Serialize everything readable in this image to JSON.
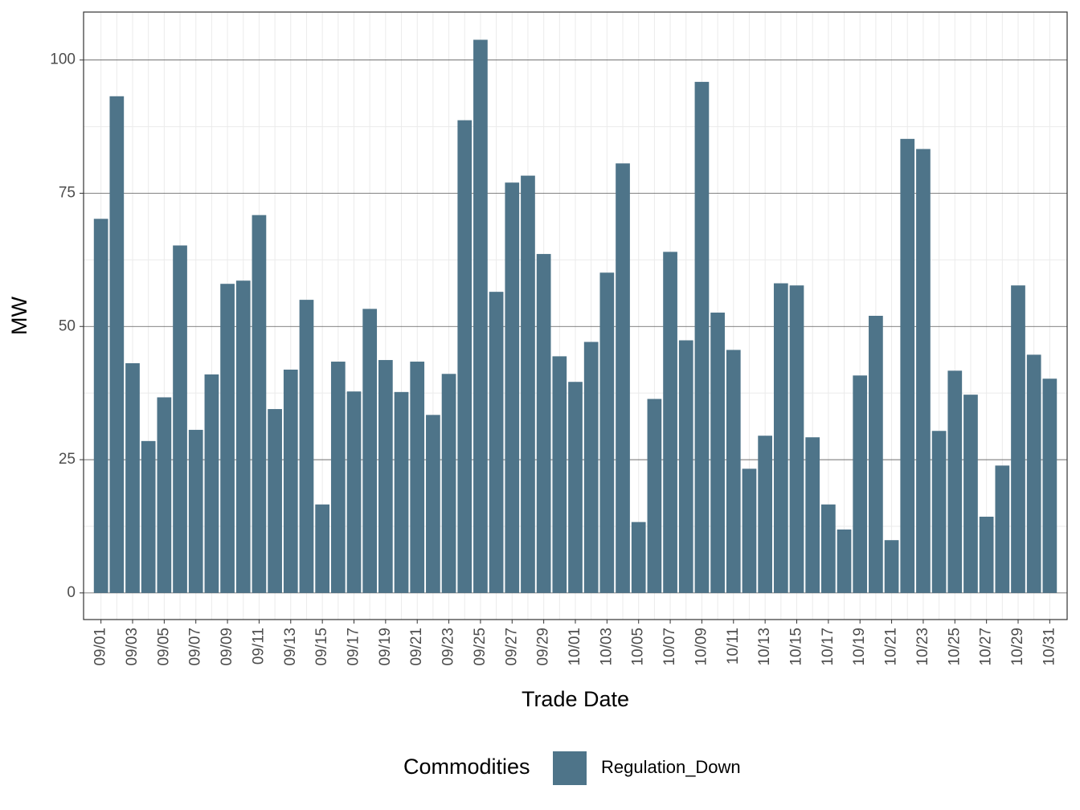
{
  "chart_data": {
    "type": "bar",
    "x_label": "Trade Date",
    "y_label": "MW",
    "categories": [
      "09/01",
      null,
      "09/03",
      null,
      "09/05",
      null,
      "09/07",
      null,
      "09/09",
      null,
      "09/11",
      null,
      "09/13",
      null,
      "09/15",
      null,
      "09/17",
      null,
      "09/19",
      null,
      "09/21",
      null,
      "09/23",
      null,
      "09/25",
      null,
      "09/27",
      null,
      "09/29",
      null,
      "10/01",
      null,
      "10/03",
      null,
      "10/05",
      null,
      "10/07",
      null,
      "10/09",
      null,
      "10/11",
      null,
      "10/13",
      null,
      "10/15",
      null,
      "10/17",
      null,
      "10/19",
      null,
      "10/21",
      null,
      "10/23",
      null,
      "10/25",
      null,
      "10/27",
      null,
      "10/29",
      null,
      "10/31"
    ],
    "series": [
      {
        "name": "Regulation_Down",
        "color": "#4e7489",
        "values": [
          70.2,
          93.2,
          43.1,
          28.5,
          36.7,
          65.2,
          30.6,
          41.0,
          58.0,
          58.6,
          70.9,
          34.5,
          41.9,
          55.0,
          16.6,
          43.4,
          37.8,
          53.3,
          43.7,
          37.7,
          43.4,
          33.4,
          41.1,
          88.7,
          103.8,
          56.5,
          77.0,
          78.3,
          63.6,
          44.4,
          39.6,
          47.1,
          60.1,
          80.6,
          13.3,
          36.4,
          64.0,
          47.4,
          95.9,
          52.6,
          45.6,
          23.3,
          29.5,
          58.1,
          57.7,
          29.2,
          16.6,
          11.9,
          40.8,
          52.0,
          9.9,
          85.2,
          83.3,
          30.4,
          41.7,
          37.2,
          14.3,
          23.9,
          57.7,
          44.7,
          40.2
        ]
      }
    ],
    "ylim": [
      -5,
      109
    ],
    "yticks": [
      0,
      25,
      50,
      75,
      100
    ],
    "grid": true,
    "legend_title": "Commodities",
    "legend_position": "bottom"
  }
}
